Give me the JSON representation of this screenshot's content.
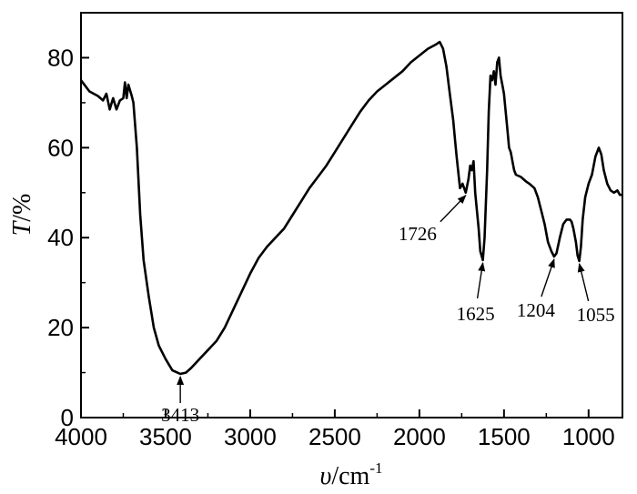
{
  "chart_data": {
    "type": "line",
    "xlabel_symbol": "υ",
    "xlabel_unit": "/cm",
    "xlabel_sup": "-1",
    "ylabel_symbol": "T",
    "ylabel_unit": "/%",
    "xlim": [
      4000,
      800
    ],
    "ylim": [
      0,
      90
    ],
    "x_reversed": true,
    "grid": false,
    "x_ticks": [
      4000,
      3500,
      3000,
      2500,
      2000,
      1500,
      1000
    ],
    "y_ticks": [
      0,
      20,
      40,
      60,
      80
    ],
    "series": [
      {
        "points": [
          [
            4000,
            75
          ],
          [
            3950,
            72.5
          ],
          [
            3900,
            71.5
          ],
          [
            3870,
            70.5
          ],
          [
            3850,
            72
          ],
          [
            3830,
            68.5
          ],
          [
            3810,
            71
          ],
          [
            3790,
            68.5
          ],
          [
            3770,
            70.5
          ],
          [
            3750,
            71
          ],
          [
            3740,
            74.5
          ],
          [
            3730,
            71
          ],
          [
            3720,
            74
          ],
          [
            3700,
            71.5
          ],
          [
            3690,
            70
          ],
          [
            3670,
            60
          ],
          [
            3650,
            45
          ],
          [
            3630,
            35
          ],
          [
            3600,
            27
          ],
          [
            3570,
            20
          ],
          [
            3540,
            16
          ],
          [
            3500,
            13
          ],
          [
            3460,
            10.5
          ],
          [
            3430,
            10
          ],
          [
            3413,
            9.7
          ],
          [
            3380,
            10
          ],
          [
            3350,
            11
          ],
          [
            3300,
            13
          ],
          [
            3250,
            15
          ],
          [
            3200,
            17
          ],
          [
            3150,
            20
          ],
          [
            3100,
            24
          ],
          [
            3050,
            28
          ],
          [
            3000,
            32
          ],
          [
            2950,
            35.5
          ],
          [
            2900,
            38
          ],
          [
            2850,
            40
          ],
          [
            2800,
            42
          ],
          [
            2750,
            45
          ],
          [
            2700,
            48
          ],
          [
            2650,
            51
          ],
          [
            2600,
            53.5
          ],
          [
            2550,
            56
          ],
          [
            2500,
            59
          ],
          [
            2450,
            62
          ],
          [
            2400,
            65
          ],
          [
            2350,
            68
          ],
          [
            2300,
            70.5
          ],
          [
            2250,
            72.5
          ],
          [
            2200,
            74
          ],
          [
            2150,
            75.5
          ],
          [
            2100,
            77
          ],
          [
            2050,
            79
          ],
          [
            2000,
            80.5
          ],
          [
            1950,
            82
          ],
          [
            1900,
            83
          ],
          [
            1880,
            83.5
          ],
          [
            1860,
            82
          ],
          [
            1840,
            78
          ],
          [
            1820,
            72
          ],
          [
            1800,
            66
          ],
          [
            1790,
            62
          ],
          [
            1780,
            58
          ],
          [
            1760,
            51
          ],
          [
            1745,
            52
          ],
          [
            1726,
            50
          ],
          [
            1710,
            53
          ],
          [
            1700,
            56
          ],
          [
            1690,
            55
          ],
          [
            1680,
            57
          ],
          [
            1670,
            50
          ],
          [
            1660,
            46
          ],
          [
            1650,
            42
          ],
          [
            1640,
            37
          ],
          [
            1625,
            35
          ],
          [
            1615,
            40
          ],
          [
            1600,
            55
          ],
          [
            1590,
            68
          ],
          [
            1580,
            76
          ],
          [
            1570,
            75
          ],
          [
            1560,
            77
          ],
          [
            1550,
            74
          ],
          [
            1540,
            79
          ],
          [
            1530,
            80
          ],
          [
            1520,
            76
          ],
          [
            1510,
            74
          ],
          [
            1500,
            72
          ],
          [
            1490,
            68
          ],
          [
            1480,
            64
          ],
          [
            1470,
            60
          ],
          [
            1460,
            59
          ],
          [
            1450,
            57
          ],
          [
            1440,
            55
          ],
          [
            1430,
            54
          ],
          [
            1400,
            53.5
          ],
          [
            1370,
            52.5
          ],
          [
            1350,
            52
          ],
          [
            1320,
            51
          ],
          [
            1300,
            49
          ],
          [
            1280,
            46
          ],
          [
            1260,
            43
          ],
          [
            1240,
            39
          ],
          [
            1220,
            37
          ],
          [
            1204,
            35.8
          ],
          [
            1190,
            36.5
          ],
          [
            1170,
            40
          ],
          [
            1150,
            43
          ],
          [
            1130,
            44
          ],
          [
            1110,
            44
          ],
          [
            1100,
            43.5
          ],
          [
            1090,
            42
          ],
          [
            1075,
            39
          ],
          [
            1065,
            36
          ],
          [
            1055,
            34.8
          ],
          [
            1045,
            38
          ],
          [
            1035,
            44
          ],
          [
            1020,
            49
          ],
          [
            1000,
            52
          ],
          [
            980,
            54
          ],
          [
            960,
            58
          ],
          [
            940,
            60
          ],
          [
            925,
            58.5
          ],
          [
            910,
            55
          ],
          [
            890,
            52
          ],
          [
            870,
            50.5
          ],
          [
            850,
            50
          ],
          [
            830,
            50.5
          ],
          [
            815,
            49.5
          ],
          [
            800,
            49.5
          ]
        ]
      }
    ],
    "annotations": [
      {
        "label": "3413",
        "x": 3413,
        "y": 9.7
      },
      {
        "label": "1726",
        "x": 1726,
        "y": 50
      },
      {
        "label": "1625",
        "x": 1625,
        "y": 35
      },
      {
        "label": "1204",
        "x": 1204,
        "y": 35.8
      },
      {
        "label": "1055",
        "x": 1055,
        "y": 34.8
      }
    ]
  }
}
